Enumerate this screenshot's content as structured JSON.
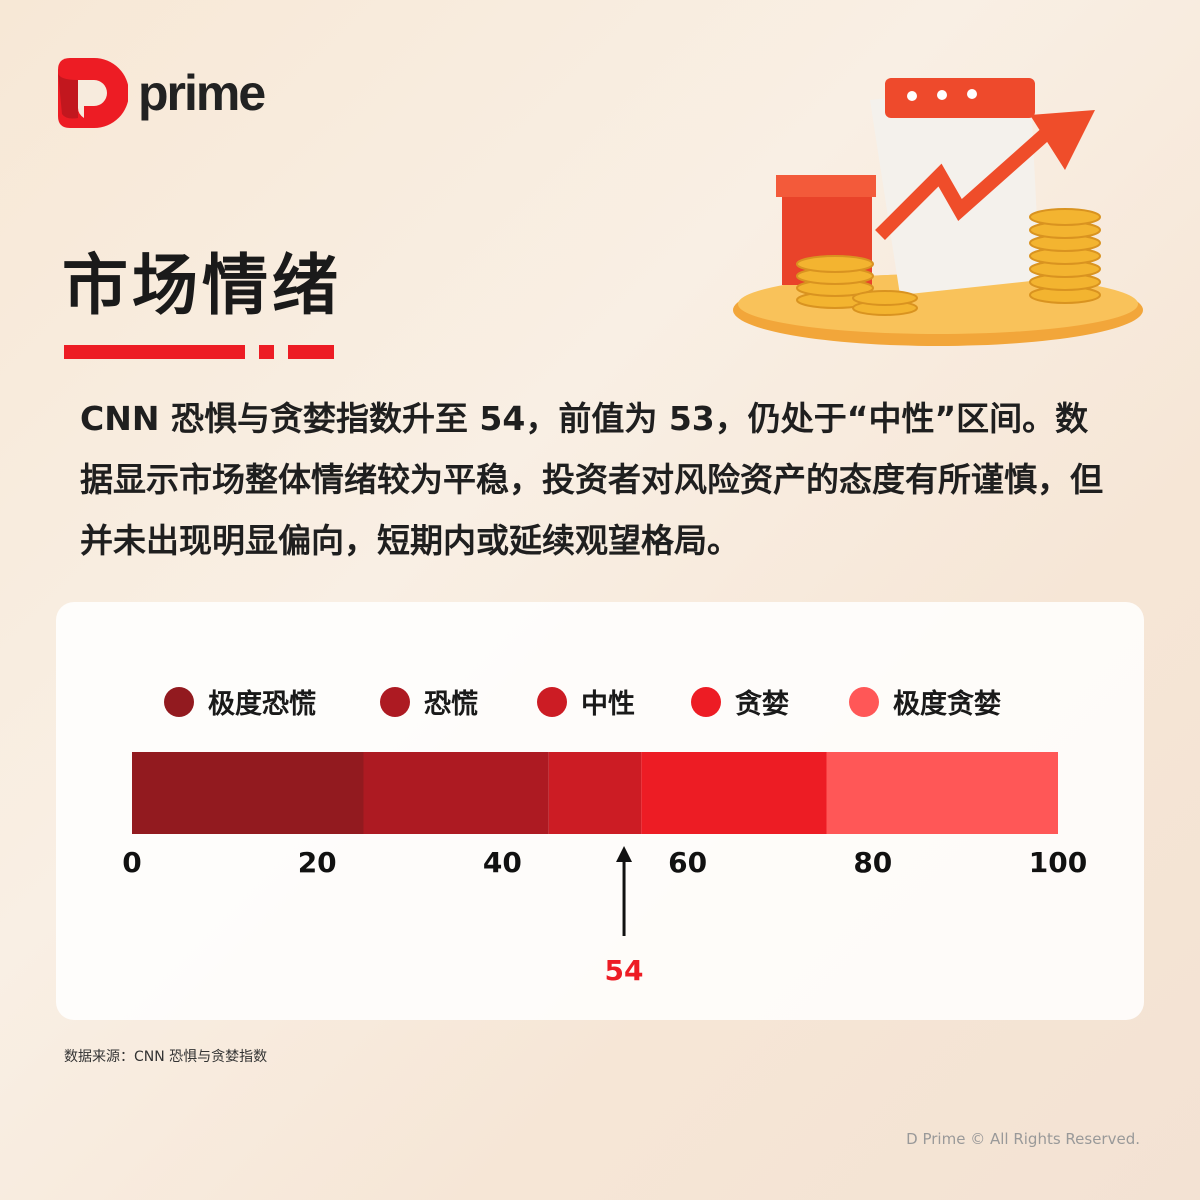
{
  "brand": {
    "logo_text": "prime",
    "accent": "#ed1c24"
  },
  "title": "市场情绪",
  "body": "CNN 恐惧与贪婪指数升至 54，前值为 53，仍处于“中性”区间。数据显示市场整体情绪较为平稳，投资者对风险资产的态度有所谨慎，但并未出现明显偏向，短期内或延续观望格局。",
  "chart_data": {
    "type": "bar",
    "categories": [
      "极度恐慌",
      "恐慌",
      "中性",
      "贪婪",
      "极度贪婪"
    ],
    "ranges": [
      [
        0,
        25
      ],
      [
        25,
        45
      ],
      [
        45,
        55
      ],
      [
        55,
        75
      ],
      [
        75,
        100
      ]
    ],
    "colors": [
      "#921a1f",
      "#ad1a22",
      "#cc1c24",
      "#ed1c24",
      "#ff5757"
    ],
    "xlim": [
      0,
      100
    ],
    "ticks": [
      "0",
      "20",
      "40",
      "60",
      "80",
      "100"
    ],
    "tick_values": [
      0,
      20,
      40,
      60,
      80,
      100
    ],
    "marker": {
      "value": 54,
      "label": "54",
      "color": "#ed1c24"
    },
    "legend": "top"
  },
  "source": "数据来源：CNN 恐惧与贪婪指数",
  "copyright": "D Prime © All Rights Reserved."
}
